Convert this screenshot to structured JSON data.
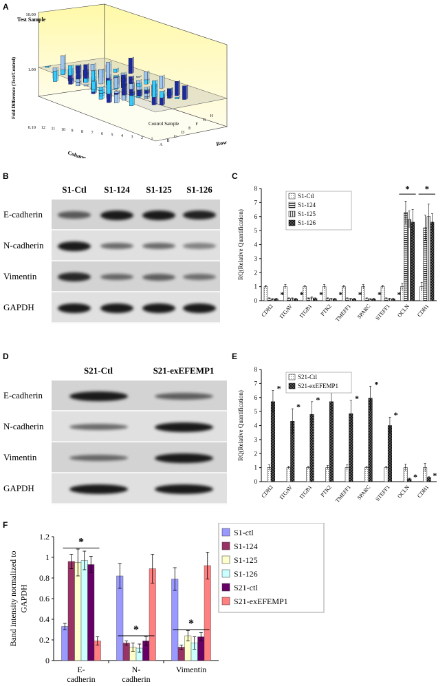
{
  "panel_labels": {
    "a": "A",
    "b": "B",
    "c": "C",
    "d": "D",
    "e": "E",
    "f": "F"
  },
  "panel_a": {
    "top_label": "Test Sample",
    "ylabel": "Fold Difference (Test/Control)",
    "yticks": [
      "10.00",
      "1.00",
      "0.10"
    ],
    "control_label": "Control Sample",
    "column_title": "Column",
    "row_title": "Row",
    "columns": [
      "12",
      "11",
      "10",
      "9",
      "8",
      "7",
      "6",
      "5",
      "4",
      "3",
      "2",
      "1"
    ],
    "rows": [
      "A",
      "B",
      "C",
      "D",
      "E",
      "F",
      "G",
      "H"
    ],
    "colors": {
      "wall": "#fff9a8",
      "light": "#9cc6f0",
      "cyan": "#33ccff",
      "dark": "#1a2aa0"
    }
  },
  "blot_b": {
    "lanes": [
      "S1-Ctl",
      "S1-124",
      "S1-125",
      "S1-126"
    ],
    "rows": [
      {
        "label": "E-cadherin",
        "bands": [
          0.55,
          1.0,
          1.0,
          0.95
        ]
      },
      {
        "label": "N-cadherin",
        "bands": [
          1.0,
          0.45,
          0.45,
          0.3
        ]
      },
      {
        "label": "Vimentin",
        "bands": [
          0.9,
          0.45,
          0.5,
          0.4
        ]
      },
      {
        "label": "GAPDH",
        "bands": [
          1.0,
          1.0,
          1.0,
          1.0
        ]
      }
    ]
  },
  "blot_d": {
    "lanes": [
      "S21-Ctl",
      "S21-exEFEMP1"
    ],
    "rows": [
      {
        "label": "E-cadherin",
        "bands": [
          1.0,
          0.5
        ]
      },
      {
        "label": "N-cadherin",
        "bands": [
          0.45,
          1.0
        ]
      },
      {
        "label": "Vimentin",
        "bands": [
          0.45,
          1.0
        ]
      },
      {
        "label": "GAPDH",
        "bands": [
          1.0,
          1.0
        ]
      }
    ]
  },
  "chart_data": [
    {
      "id": "C",
      "type": "bar",
      "ylabel": "RQ(Relative Quantification)",
      "ylim": [
        0,
        8
      ],
      "yticks": [
        "0",
        "1",
        "2",
        "3",
        "4",
        "5",
        "6",
        "7",
        "8"
      ],
      "categories": [
        "CDH2",
        "ITGAV",
        "ITGB1",
        "PTK2",
        "TMEFF1",
        "SPARC",
        "STEFF1",
        "OCLN",
        "CDH1"
      ],
      "series": [
        {
          "name": "S1-Ctl",
          "values": [
            1,
            1,
            1,
            1,
            1,
            1,
            1,
            1,
            1
          ],
          "errors": [
            0.1,
            0.15,
            0.1,
            0.15,
            0.1,
            0.15,
            0.1,
            0.25,
            0.3
          ]
        },
        {
          "name": "S1-124",
          "values": [
            0.15,
            0.15,
            0.15,
            0.15,
            0.15,
            0.15,
            0.15,
            6.3,
            5.2
          ],
          "errors": [
            0.05,
            0.05,
            0.05,
            0.05,
            0.05,
            0.05,
            0.05,
            0.8,
            0.9
          ]
        },
        {
          "name": "S1-125",
          "values": [
            0.1,
            0.15,
            0.2,
            0.12,
            0.12,
            0.1,
            0.12,
            5.8,
            6.0
          ],
          "errors": [
            0.05,
            0.05,
            0.08,
            0.05,
            0.05,
            0.05,
            0.05,
            0.6,
            0.9
          ]
        },
        {
          "name": "S1-126",
          "values": [
            0.12,
            0.12,
            0.15,
            0.12,
            0.12,
            0.12,
            0.12,
            5.6,
            5.6
          ],
          "errors": [
            0.05,
            0.05,
            0.05,
            0.05,
            0.05,
            0.05,
            0.05,
            0.9,
            0.6
          ]
        }
      ],
      "stars": [
        {
          "cat": 0,
          "y": 0.5,
          "label": "*"
        },
        {
          "cat": 1,
          "y": 0.5,
          "label": "*"
        },
        {
          "cat": 2,
          "y": 0.5,
          "label": "*"
        },
        {
          "cat": 3,
          "y": 0.5,
          "label": "*"
        },
        {
          "cat": 4,
          "y": 0.5,
          "label": "*"
        },
        {
          "cat": 5,
          "y": 0.5,
          "label": "*"
        },
        {
          "cat": 6,
          "y": 0.5,
          "label": "*"
        }
      ],
      "brackets": [
        {
          "cat": 7,
          "y": 7.6,
          "label": "*"
        },
        {
          "cat": 8,
          "y": 7.6,
          "label": "*"
        }
      ],
      "legend_placement": "top-left"
    },
    {
      "id": "E",
      "type": "bar",
      "ylabel": "RQ(Relative Quantification)",
      "ylim": [
        0,
        8
      ],
      "yticks": [
        "0",
        "1",
        "2",
        "3",
        "4",
        "5",
        "6",
        "7",
        "8"
      ],
      "categories": [
        "CDH2",
        "ITGAV",
        "ITGB1",
        "PTK2",
        "TMEFF1",
        "SPARC",
        "STEFF1",
        "OCLN",
        "CDH1"
      ],
      "series": [
        {
          "name": "S21-Ctl",
          "values": [
            1,
            1,
            1,
            1,
            1,
            1,
            1,
            1,
            1
          ],
          "errors": [
            0.2,
            0.1,
            0.1,
            0.15,
            0.2,
            0.1,
            0.1,
            0.25,
            0.3
          ]
        },
        {
          "name": "S21-exEFEMP1",
          "values": [
            5.7,
            4.3,
            4.8,
            5.7,
            4.85,
            5.95,
            4.0,
            0.2,
            0.3
          ],
          "errors": [
            0.8,
            0.9,
            0.9,
            0.9,
            0.95,
            0.85,
            0.6,
            0.05,
            0.05
          ]
        }
      ],
      "stars": [
        {
          "cat": 0,
          "y": 6.7,
          "label": "*"
        },
        {
          "cat": 1,
          "y": 5.4,
          "label": "*"
        },
        {
          "cat": 2,
          "y": 5.9,
          "label": "*"
        },
        {
          "cat": 3,
          "y": 6.8,
          "label": "*"
        },
        {
          "cat": 4,
          "y": 6.0,
          "label": "*"
        },
        {
          "cat": 5,
          "y": 7.0,
          "label": "*"
        },
        {
          "cat": 6,
          "y": 4.8,
          "label": "*"
        },
        {
          "cat": 7,
          "y": 0.4,
          "label": "*"
        },
        {
          "cat": 8,
          "y": 0.5,
          "label": "*"
        }
      ],
      "legend_placement": "top-left"
    },
    {
      "id": "F",
      "type": "bar",
      "ylabel": "Band intensity normalized to GAPDH",
      "ylim": [
        0,
        1.2
      ],
      "yticks": [
        "0",
        "0.2",
        "0.4",
        "0.6",
        "0.8",
        "1",
        "1.2"
      ],
      "categories": [
        "E-cadherin",
        "N-cadherin",
        "Vimentin"
      ],
      "category_lines": [
        [
          "E-",
          "cadherin"
        ],
        [
          "N-",
          "cadherin"
        ],
        [
          "Vimentin"
        ]
      ],
      "series": [
        {
          "name": "S1-ctl",
          "color": "#9999ff",
          "values": [
            0.33,
            0.82,
            0.79
          ],
          "errors": [
            0.03,
            0.12,
            0.11
          ]
        },
        {
          "name": "S1-124",
          "color": "#993366",
          "values": [
            0.96,
            0.17,
            0.13
          ],
          "errors": [
            0.07,
            0.02,
            0.02
          ]
        },
        {
          "name": "S1-125",
          "color": "#ffffcc",
          "values": [
            0.95,
            0.13,
            0.24
          ],
          "errors": [
            0.13,
            0.04,
            0.05
          ]
        },
        {
          "name": "S1-126",
          "color": "#ccffff",
          "values": [
            0.97,
            0.12,
            0.17
          ],
          "errors": [
            0.09,
            0.04,
            0.06
          ]
        },
        {
          "name": "S21-ctl",
          "color": "#660066",
          "values": [
            0.93,
            0.19,
            0.23
          ],
          "errors": [
            0.08,
            0.04,
            0.04
          ]
        },
        {
          "name": "S21-exEFEMP1",
          "color": "#ff8080",
          "values": [
            0.19,
            0.89,
            0.92
          ],
          "errors": [
            0.04,
            0.14,
            0.13
          ]
        }
      ],
      "brackets": [
        {
          "cat": 0,
          "y": 1.09,
          "label": "*"
        },
        {
          "cat": 1,
          "y": 0.24,
          "label": "*"
        },
        {
          "cat": 2,
          "y": 0.3,
          "label": "*"
        }
      ],
      "legend_placement": "right"
    }
  ]
}
